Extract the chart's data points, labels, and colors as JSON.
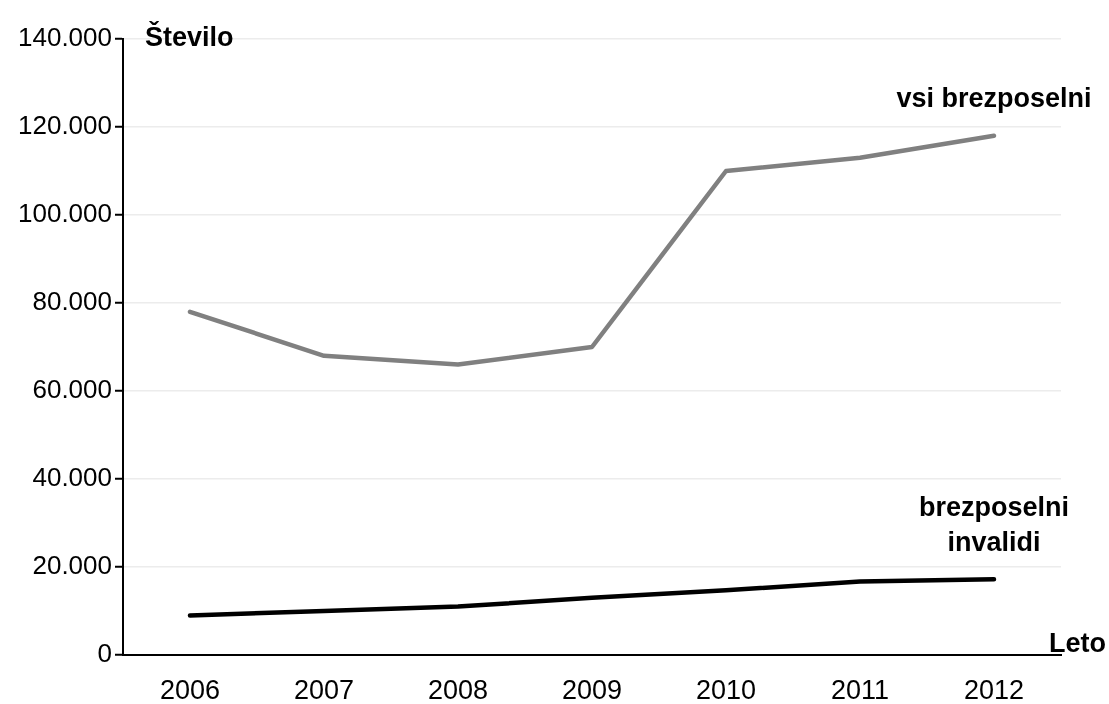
{
  "chart_data": {
    "type": "line",
    "ylabel": "Število",
    "xlabel": "Leto",
    "categories": [
      "2006",
      "2007",
      "2008",
      "2009",
      "2010",
      "2011",
      "2012"
    ],
    "series": [
      {
        "name": "vsi brezposelni",
        "color": "#808080",
        "values": [
          78000,
          68000,
          66000,
          70000,
          110000,
          113000,
          118000
        ]
      },
      {
        "name": "brezposelni invalidi",
        "color": "#000000",
        "values": [
          9000,
          10000,
          11000,
          13000,
          14700,
          16700,
          17200
        ]
      }
    ],
    "ylim": [
      0,
      140000
    ],
    "yticks": [
      0,
      {
        "value": 20000,
        "label": "20.000"
      },
      {
        "value": 40000,
        "label": "40.000"
      },
      {
        "value": 60000,
        "label": "60.000"
      },
      {
        "value": 80000,
        "label": "80.000"
      },
      {
        "value": 100000,
        "label": "100.000"
      },
      {
        "value": 120000,
        "label": "120.000"
      },
      {
        "value": 140000,
        "label": "140.000"
      }
    ],
    "grid": "y",
    "legend": false,
    "marker": "none"
  }
}
